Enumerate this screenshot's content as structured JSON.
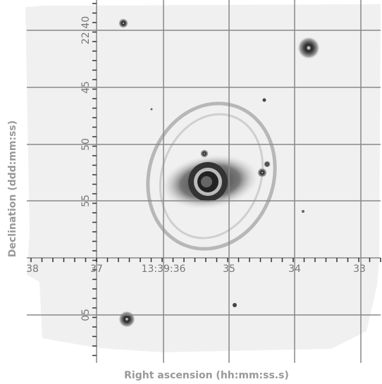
{
  "x_axis_label": "Right ascension (hh:mm:ss.s)",
  "y_axis_label": "Declination (ddd:mm:ss)",
  "ra_labels": [
    "38",
    "37",
    "13:39:36",
    "35",
    "34",
    "33"
  ],
  "dec_labels": [
    "22:40",
    "45",
    "50",
    "55",
    "05"
  ]
}
